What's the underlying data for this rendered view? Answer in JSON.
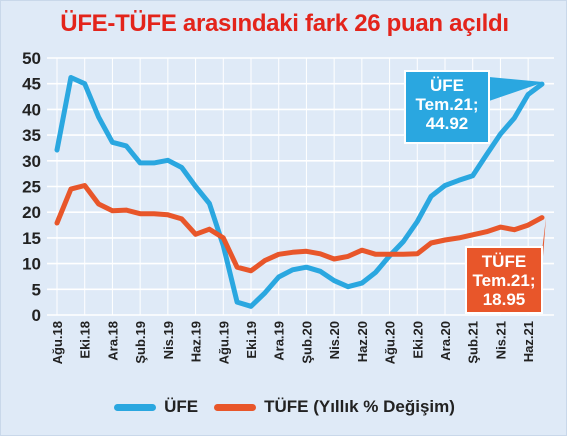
{
  "chart_data": {
    "type": "line",
    "title": "ÜFE-TÜFE arasındaki fark 26 puan açıldı",
    "ylim": [
      0,
      50
    ],
    "yticks": [
      0,
      5,
      10,
      15,
      20,
      25,
      30,
      35,
      40,
      45,
      50
    ],
    "xlim": [
      "2018-08",
      "2021-07"
    ],
    "xticks": [
      "Ağu.18",
      "Eki.18",
      "Ara.18",
      "Şub.19",
      "Nis.19",
      "Haz.19",
      "Ağu.19",
      "Eki.19",
      "Ara.19",
      "Şub.20",
      "Nis.20",
      "Haz.20",
      "Ağu.20",
      "Eki.20",
      "Ara.20",
      "Şub.21",
      "Nis.21",
      "Haz.21"
    ],
    "x": [
      "2018-08",
      "2018-09",
      "2018-10",
      "2018-11",
      "2018-12",
      "2019-01",
      "2019-02",
      "2019-03",
      "2019-04",
      "2019-05",
      "2019-06",
      "2019-07",
      "2019-08",
      "2019-09",
      "2019-10",
      "2019-11",
      "2019-12",
      "2020-01",
      "2020-02",
      "2020-03",
      "2020-04",
      "2020-05",
      "2020-06",
      "2020-07",
      "2020-08",
      "2020-09",
      "2020-10",
      "2020-11",
      "2020-12",
      "2021-01",
      "2021-02",
      "2021-03",
      "2021-04",
      "2021-05",
      "2021-06",
      "2021-07"
    ],
    "series": [
      {
        "name": "ÜFE",
        "color": "#2aa7e0",
        "values": [
          32.1,
          46.2,
          45.0,
          38.5,
          33.6,
          32.9,
          29.6,
          29.6,
          30.1,
          28.7,
          25.0,
          21.7,
          13.5,
          2.5,
          1.7,
          4.3,
          7.4,
          8.8,
          9.3,
          8.5,
          6.7,
          5.5,
          6.2,
          8.3,
          11.5,
          14.3,
          18.2,
          23.1,
          25.2,
          26.2,
          27.1,
          31.2,
          35.2,
          38.3,
          42.9,
          44.92
        ]
      },
      {
        "name": "TÜFE (Yıllık % Değişim)",
        "color": "#e8562a",
        "values": [
          17.9,
          24.5,
          25.2,
          21.6,
          20.3,
          20.4,
          19.7,
          19.7,
          19.5,
          18.7,
          15.7,
          16.7,
          15.0,
          9.3,
          8.6,
          10.6,
          11.8,
          12.2,
          12.4,
          11.9,
          10.9,
          11.4,
          12.6,
          11.8,
          11.8,
          11.8,
          11.9,
          14.0,
          14.6,
          15.0,
          15.6,
          16.2,
          17.1,
          16.6,
          17.5,
          18.95
        ]
      }
    ],
    "callouts": [
      {
        "series": "ÜFE",
        "line1": "ÜFE",
        "line2": "Tem.21;",
        "line3": "44.92",
        "color": "#2aa7e0"
      },
      {
        "series": "TÜFE",
        "line1": "TÜFE",
        "line2": "Tem.21;",
        "line3": "18.95",
        "color": "#e8562a"
      }
    ],
    "grid": true,
    "legend": [
      {
        "label": "ÜFE",
        "color": "#2aa7e0"
      },
      {
        "label": "TÜFE (Yıllık % Değişim)",
        "color": "#e8562a"
      }
    ],
    "legend_position": "bottom"
  }
}
